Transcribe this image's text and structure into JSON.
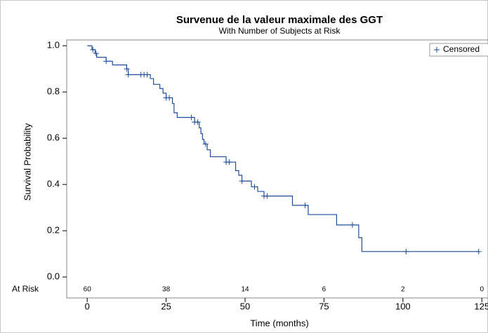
{
  "chart_data": {
    "type": "step",
    "title": "Survenue de la valeur maximale des GGT",
    "subtitle": "With Number of Subjects at Risk",
    "xlabel": "Time (months)",
    "ylabel": "Survival Probability",
    "xlim": [
      -6.5,
      135
    ],
    "ylim": [
      -0.03,
      1.025
    ],
    "xticks": [
      0,
      25,
      50,
      75,
      100,
      125
    ],
    "yticks": [
      {
        "value": 0,
        "label": "0.0"
      },
      0.2,
      0.4,
      0.6,
      0.8,
      {
        "value": 1,
        "label": "1.0"
      }
    ],
    "color": "#1f4e9a",
    "series": [
      {
        "x": [
          0,
          1.5,
          2.5,
          3,
          6,
          8,
          12.5,
          13,
          20,
          21,
          23,
          24,
          25,
          27,
          27.5,
          28.5,
          34,
          35.5,
          36,
          36.5,
          37,
          38,
          39,
          44,
          47,
          48,
          49,
          52,
          54,
          56,
          65,
          70,
          79,
          86,
          87,
          124
        ],
        "values": [
          1,
          0.983,
          0.967,
          0.95,
          0.933,
          0.917,
          0.9,
          0.875,
          0.858,
          0.833,
          0.815,
          0.795,
          0.775,
          0.75,
          0.71,
          0.69,
          0.67,
          0.645,
          0.62,
          0.595,
          0.575,
          0.55,
          0.52,
          0.497,
          0.46,
          0.44,
          0.415,
          0.39,
          0.37,
          0.35,
          0.31,
          0.27,
          0.225,
          0.17,
          0.11,
          0.11
        ]
      },
      {
        "name": "Censored",
        "x": [
          1.8,
          2.8,
          6,
          12.5,
          13,
          17,
          18,
          19,
          25,
          26,
          33,
          34,
          35,
          37.5,
          44,
          45,
          49,
          53,
          56,
          57,
          69,
          84,
          101,
          124
        ],
        "values": [
          0.983,
          0.967,
          0.933,
          0.9,
          0.875,
          0.875,
          0.875,
          0.875,
          0.775,
          0.775,
          0.69,
          0.67,
          0.67,
          0.575,
          0.497,
          0.497,
          0.415,
          0.39,
          0.35,
          0.35,
          0.31,
          0.225,
          0.11,
          0.11
        ]
      }
    ],
    "at_risk_label": "At Risk",
    "at_risk": [
      60,
      38,
      14,
      6,
      2,
      0
    ],
    "legend": "top-right"
  }
}
